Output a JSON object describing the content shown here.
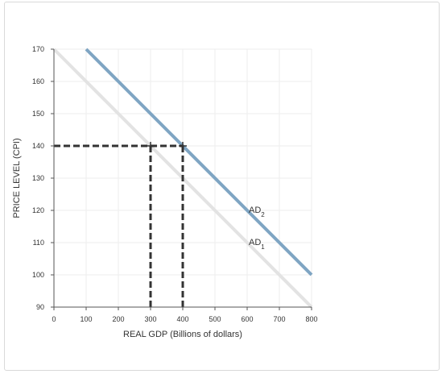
{
  "chart_data": {
    "type": "line",
    "xlabel": "REAL GDP (Billions of dollars)",
    "ylabel": "PRICE LEVEL (CPI)",
    "xlim": [
      0,
      800
    ],
    "ylim": [
      90,
      170
    ],
    "x_ticks": [
      0,
      100,
      200,
      300,
      400,
      500,
      600,
      700,
      800
    ],
    "y_ticks": [
      90,
      100,
      110,
      120,
      130,
      140,
      150,
      160,
      170
    ],
    "grid": true,
    "series": [
      {
        "name": "AD1",
        "label_main": "AD",
        "label_sub": "1",
        "color": "#e3e3e3",
        "points": [
          [
            0,
            170
          ],
          [
            800,
            90
          ]
        ]
      },
      {
        "name": "AD2",
        "label_main": "AD",
        "label_sub": "2",
        "color": "#7fa5c3",
        "points": [
          [
            100,
            170
          ],
          [
            800,
            100
          ]
        ]
      }
    ],
    "reference_lines": [
      {
        "from": [
          0,
          140
        ],
        "to": [
          400,
          140
        ],
        "style": "dashed",
        "color": "#333333"
      },
      {
        "from": [
          300,
          90
        ],
        "to": [
          300,
          140
        ],
        "style": "dashed",
        "color": "#333333"
      },
      {
        "from": [
          400,
          90
        ],
        "to": [
          400,
          140
        ],
        "style": "dashed",
        "color": "#333333"
      }
    ],
    "markers": [
      {
        "x": 300,
        "y": 140,
        "shape": "cross"
      },
      {
        "x": 400,
        "y": 140,
        "shape": "cross"
      }
    ],
    "label_anchors": [
      {
        "series": "AD2",
        "x": 600,
        "y": 120
      },
      {
        "series": "AD1",
        "x": 600,
        "y": 110
      }
    ]
  }
}
